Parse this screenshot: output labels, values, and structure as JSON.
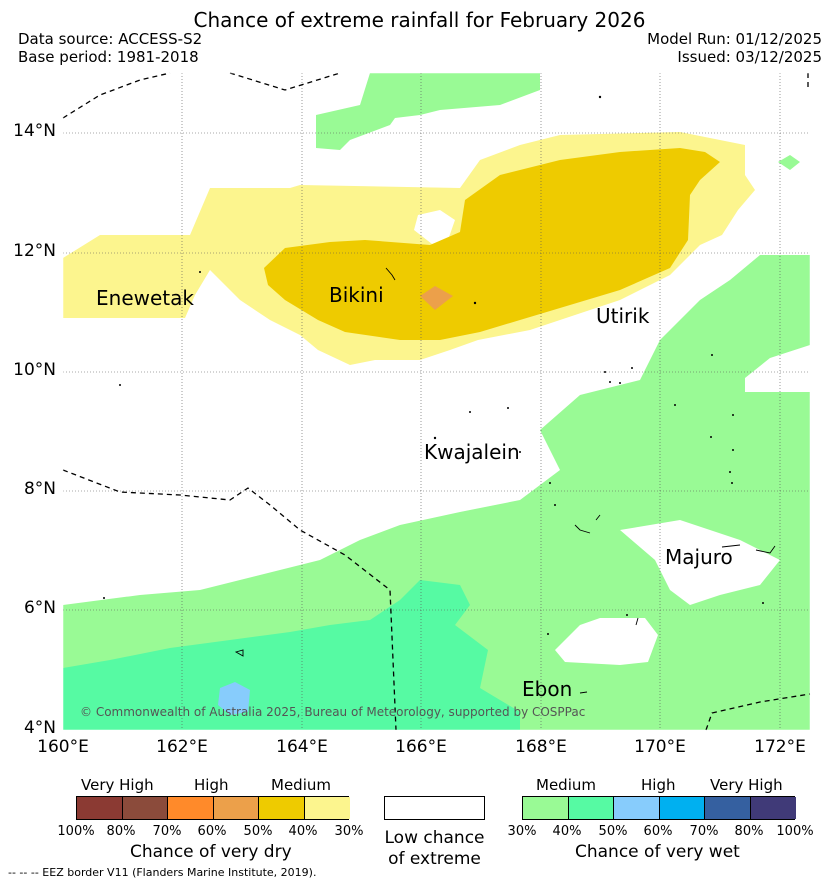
{
  "header": {
    "title": "Chance of extreme rainfall for February 2026",
    "data_source": "Data source: ACCESS-S2",
    "base_period": "Base period: 1981-2018",
    "model_run": "Model Run: 01/12/2025",
    "issued": "Issued: 03/12/2025"
  },
  "axes": {
    "lat_labels": [
      "14°N",
      "12°N",
      "10°N",
      "8°N",
      "6°N",
      "4°N"
    ],
    "lon_labels": [
      "160°E",
      "162°E",
      "164°E",
      "166°E",
      "168°E",
      "170°E",
      "172°E"
    ]
  },
  "places": {
    "enewetak": "Enewetak",
    "bikini": "Bikini",
    "utirik": "Utirik",
    "kwajalein": "Kwajalein",
    "majuro": "Majuro",
    "ebon": "Ebon"
  },
  "copyright": "© Commonwealth of Australia 2025, Bureau of Meteorology, supported by COSPPac",
  "legend": {
    "dry": {
      "categories": [
        "Very High",
        "High",
        "Medium"
      ],
      "ticks": [
        "100%",
        "80%",
        "70%",
        "60%",
        "50%",
        "40%",
        "30%"
      ],
      "colors": [
        "#8b3a33",
        "#8b4b3b",
        "#ff8a2a",
        "#eca04a",
        "#eecb00",
        "#fcf58e"
      ],
      "title": "Chance of very dry"
    },
    "low": {
      "line1": "Low chance",
      "line2": "of extreme",
      "color": "#ffffff"
    },
    "wet": {
      "categories": [
        "Medium",
        "High",
        "Very High"
      ],
      "ticks": [
        "30%",
        "40%",
        "50%",
        "60%",
        "70%",
        "80%",
        "100%"
      ],
      "colors": [
        "#99fa95",
        "#56faa3",
        "#87ccfc",
        "#00b0f0",
        "#3560a0",
        "#403a78"
      ],
      "title": "Chance of very wet"
    }
  },
  "footnote": "--  --  -- EEZ border V11 (Flanders Marine Institute, 2019)."
}
